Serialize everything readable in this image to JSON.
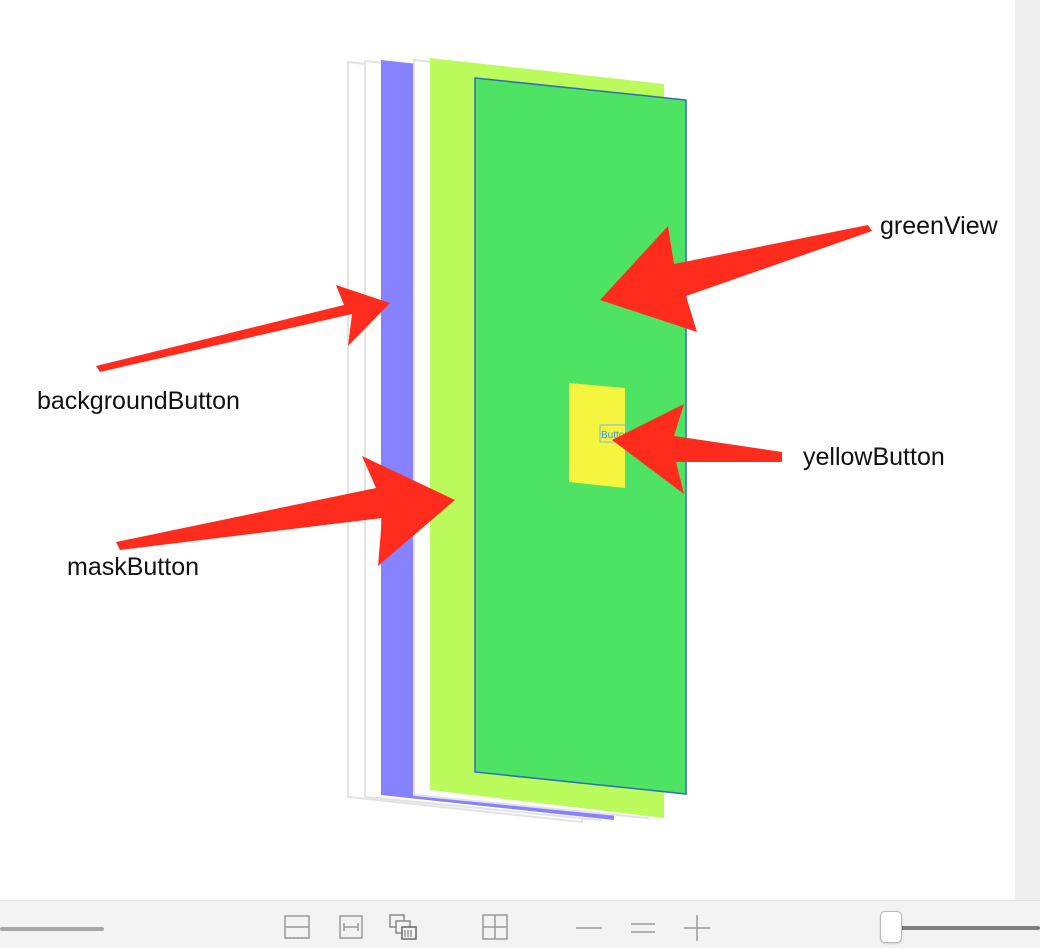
{
  "labels": {
    "green_view": "greenView",
    "background_button": "backgroundButton",
    "yellow_button": "yellowButton",
    "mask_button": "maskButton",
    "button_title": "Button"
  },
  "colors": {
    "background_button": "#8782ff",
    "mask_button": "#bbfb5c",
    "green_view": "#4fe363",
    "yellow_button": "#f5f53f",
    "arrow": "#ff2b1c",
    "frame_outline": "#e3e3e3"
  },
  "toolbar": {
    "icons": [
      "clip-content-icon",
      "show-constraints-icon",
      "show-views-icon",
      "orient-3d-icon",
      "zoom-out-icon",
      "zoom-actual-size-icon",
      "zoom-in-icon"
    ]
  }
}
